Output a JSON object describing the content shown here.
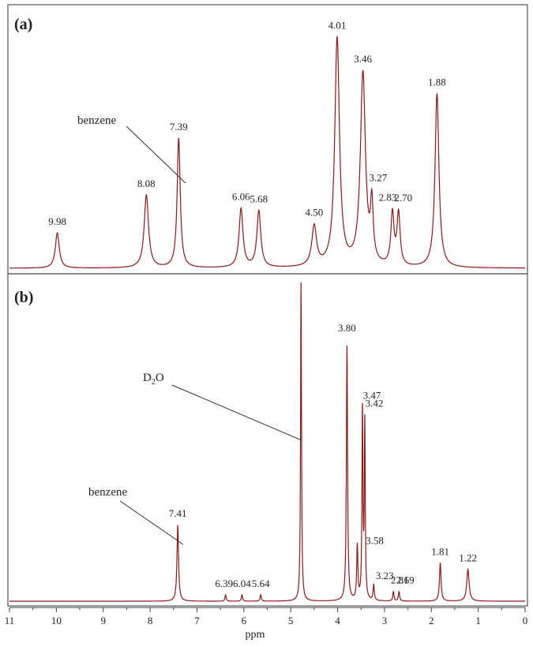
{
  "chart_data": {
    "type": "line",
    "xlabel": "ppm",
    "xlim": [
      11,
      0
    ],
    "x_reversed": true,
    "x_ticks": [
      "11",
      "10",
      "9",
      "8",
      "7",
      "6",
      "5",
      "4",
      "3",
      "2",
      "1",
      "0"
    ],
    "line_color": "#8b1a1a",
    "panels": [
      {
        "label": "(a)",
        "peaks": [
          {
            "ppm": 9.98,
            "label": "9.98",
            "height": 0.15,
            "width": 0.05
          },
          {
            "ppm": 8.08,
            "label": "8.08",
            "height": 0.31,
            "width": 0.055
          },
          {
            "ppm": 7.39,
            "label": "7.39",
            "height": 0.55,
            "width": 0.04
          },
          {
            "ppm": 6.06,
            "label": "6.06",
            "height": 0.25,
            "width": 0.05
          },
          {
            "ppm": 5.68,
            "label": "5.68",
            "height": 0.24,
            "width": 0.05
          },
          {
            "ppm": 4.5,
            "label": "4.50",
            "height": 0.17,
            "width": 0.06
          },
          {
            "ppm": 4.01,
            "label": "4.01",
            "height": 0.97,
            "width": 0.06
          },
          {
            "ppm": 3.46,
            "label": "3.46",
            "height": 0.82,
            "width": 0.065
          },
          {
            "ppm": 3.27,
            "label": "3.27",
            "height": 0.24,
            "width": 0.035
          },
          {
            "ppm": 2.83,
            "label": "2.83",
            "height": 0.22,
            "width": 0.04
          },
          {
            "ppm": 2.7,
            "label": "2.70",
            "height": 0.22,
            "width": 0.04
          },
          {
            "ppm": 1.88,
            "label": "1.88",
            "height": 0.74,
            "width": 0.05
          }
        ],
        "annotation": {
          "text": "benzene",
          "target_ppm": 7.39
        }
      },
      {
        "label": "(b)",
        "peaks": [
          {
            "ppm": 7.41,
            "label": "7.41",
            "height": 0.24,
            "width": 0.02
          },
          {
            "ppm": 6.39,
            "label": "6.39",
            "height": 0.02,
            "width": 0.015
          },
          {
            "ppm": 6.04,
            "label": "6.04",
            "height": 0.02,
            "width": 0.015
          },
          {
            "ppm": 5.64,
            "label": "5.64",
            "height": 0.02,
            "width": 0.015
          },
          {
            "ppm": 4.78,
            "label": "",
            "height": 1.0,
            "width": 0.012
          },
          {
            "ppm": 3.8,
            "label": "3.80",
            "height": 0.8,
            "width": 0.015
          },
          {
            "ppm": 3.58,
            "label": "3.58",
            "height": 0.17,
            "width": 0.015
          },
          {
            "ppm": 3.47,
            "label": "3.47",
            "height": 0.6,
            "width": 0.012
          },
          {
            "ppm": 3.42,
            "label": "3.42",
            "height": 0.55,
            "width": 0.012
          },
          {
            "ppm": 3.23,
            "label": "3.23",
            "height": 0.05,
            "width": 0.015
          },
          {
            "ppm": 2.81,
            "label": "2.81",
            "height": 0.03,
            "width": 0.015
          },
          {
            "ppm": 2.69,
            "label": "2.69",
            "height": 0.03,
            "width": 0.015
          },
          {
            "ppm": 1.81,
            "label": "1.81",
            "height": 0.12,
            "width": 0.02
          },
          {
            "ppm": 1.22,
            "label": "1.22",
            "height": 0.1,
            "width": 0.03
          }
        ],
        "annotations": [
          {
            "text": "benzene",
            "target_ppm": 7.41
          },
          {
            "text": "D",
            "subscript": "2",
            "text_after": "O",
            "target_ppm": 4.78
          }
        ]
      }
    ]
  }
}
